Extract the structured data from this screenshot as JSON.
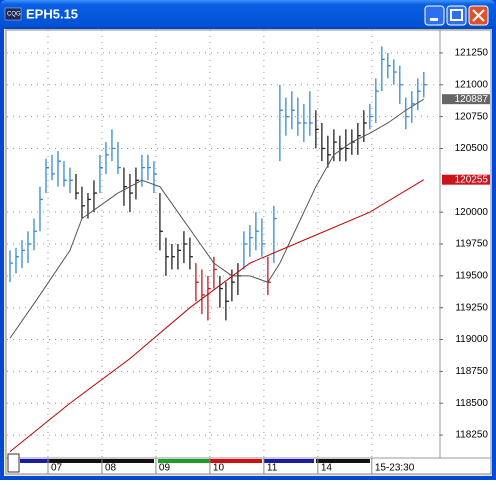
{
  "window": {
    "title": "EPH5.15"
  },
  "chart_data": {
    "type": "ohlc",
    "xlim": [
      -0.5,
      71.7
    ],
    "ylim": [
      118070,
      121430
    ],
    "yticks": [
      118250,
      118500,
      118750,
      119000,
      119250,
      119500,
      119750,
      120000,
      120500,
      120750,
      121000,
      121250
    ],
    "xticks": [
      {
        "value": 7,
        "label": "07"
      },
      {
        "value": 16,
        "label": "08"
      },
      {
        "value": 25,
        "label": "09"
      },
      {
        "value": 34,
        "label": "10"
      },
      {
        "value": 43,
        "label": "11"
      },
      {
        "value": 52,
        "label": "14"
      },
      {
        "value": 61,
        "label": "15-23:30"
      }
    ],
    "grid": true,
    "series": [
      {
        "color": "#2f8ae0",
        "x": [
          0,
          1,
          2,
          3,
          4,
          5,
          6,
          7,
          8,
          9,
          10
        ],
        "high": [
          119700,
          119720,
          119780,
          119850,
          119950,
          120200,
          120420,
          120450,
          120480,
          120400,
          120350
        ],
        "low": [
          119450,
          119520,
          119560,
          119600,
          119700,
          119850,
          120150,
          120250,
          120200,
          120200,
          120150
        ],
        "close": [
          119600,
          119650,
          119700,
          119750,
          119850,
          120100,
          120350,
          120300,
          120400,
          120250,
          120250
        ]
      },
      {
        "color": "#222222",
        "x": [
          11,
          12,
          13,
          14
        ],
        "high": [
          120300,
          120200,
          120150,
          120250
        ],
        "low": [
          120100,
          119950,
          119950,
          120000
        ],
        "close": [
          120150,
          120050,
          120100,
          120150
        ]
      },
      {
        "color": "#2f8ae0",
        "x": [
          15,
          16,
          17,
          18
        ],
        "high": [
          120450,
          120550,
          120650,
          120550
        ],
        "low": [
          120150,
          120300,
          120400,
          120300
        ],
        "close": [
          120350,
          120450,
          120500,
          120350
        ]
      },
      {
        "color": "#222222",
        "x": [
          19,
          20,
          21
        ],
        "high": [
          120350,
          120300,
          120350
        ],
        "low": [
          120050,
          120000,
          120100
        ],
        "close": [
          120200,
          120150,
          120250
        ]
      },
      {
        "color": "#2f8ae0",
        "x": [
          22,
          23,
          24
        ],
        "high": [
          120450,
          120450,
          120400
        ],
        "low": [
          120200,
          120250,
          120150
        ],
        "close": [
          120350,
          120350,
          120300
        ]
      },
      {
        "color": "#222222",
        "x": [
          25,
          26,
          27,
          28,
          29,
          30
        ],
        "high": [
          120150,
          119800,
          119750,
          119750,
          119850,
          119800
        ],
        "low": [
          119700,
          119500,
          119550,
          119550,
          119600,
          119550
        ],
        "close": [
          119850,
          119650,
          119650,
          119700,
          119750,
          119650
        ]
      },
      {
        "color": "#d0121b",
        "x": [
          31,
          32,
          33,
          34
        ],
        "high": [
          119600,
          119550,
          119500,
          119650
        ],
        "low": [
          119300,
          119200,
          119150,
          119400
        ],
        "close": [
          119450,
          119350,
          119400,
          119550
        ]
      },
      {
        "color": "#222222",
        "x": [
          35,
          36,
          37,
          38
        ],
        "high": [
          119500,
          119450,
          119550,
          119600
        ],
        "low": [
          119250,
          119150,
          119300,
          119350
        ],
        "close": [
          119400,
          119300,
          119450,
          119500
        ]
      },
      {
        "color": "#2f8ae0",
        "x": [
          39,
          40,
          41,
          42
        ],
        "high": [
          119850,
          119900,
          120000,
          119950
        ],
        "low": [
          119550,
          119650,
          119700,
          119650
        ],
        "close": [
          119750,
          119800,
          119850,
          119750
        ]
      },
      {
        "color": "#d0121b",
        "x": [
          43
        ],
        "high": [
          119650
        ],
        "low": [
          119350
        ],
        "close": [
          119450
        ]
      },
      {
        "color": "#2f8ae0",
        "x": [
          44,
          45,
          46,
          47,
          48,
          49,
          50
        ],
        "high": [
          120050,
          121000,
          120900,
          120950,
          120900,
          120850,
          120950
        ],
        "low": [
          119600,
          120400,
          120600,
          120650,
          120600,
          120550,
          120600
        ],
        "close": [
          119950,
          120800,
          120750,
          120800,
          120700,
          120700,
          120700
        ]
      },
      {
        "color": "#222222",
        "x": [
          51,
          52,
          53,
          54,
          55,
          56,
          57,
          58,
          59
        ],
        "high": [
          120800,
          120700,
          120600,
          120650,
          120600,
          120650,
          120650,
          120700,
          120800
        ],
        "low": [
          120500,
          120400,
          120350,
          120400,
          120400,
          120400,
          120450,
          120450,
          120550
        ],
        "close": [
          120650,
          120500,
          120450,
          120550,
          120500,
          120500,
          120550,
          120600,
          120700
        ]
      },
      {
        "color": "#2f8ae0",
        "x": [
          60,
          61,
          62,
          63,
          64,
          65,
          66,
          67,
          68,
          69
        ],
        "high": [
          120850,
          121050,
          121300,
          121250,
          121200,
          121150,
          120900,
          120950,
          121050,
          121100
        ],
        "low": [
          120650,
          120700,
          120950,
          121050,
          121000,
          120850,
          120650,
          120700,
          120800,
          120900
        ],
        "close": [
          120750,
          120950,
          121200,
          121150,
          121100,
          121000,
          120750,
          120850,
          120950,
          121000
        ]
      }
    ],
    "lines": [
      {
        "color": "#555555",
        "tag_color": "#666666",
        "x": [
          0,
          5,
          10,
          12,
          15,
          18,
          22,
          25,
          28,
          31,
          34,
          37,
          40,
          43,
          45,
          48,
          51,
          54,
          57,
          60,
          63,
          66,
          69
        ],
        "values": [
          119010,
          119350,
          119700,
          119950,
          120050,
          120150,
          120250,
          120200,
          120000,
          119800,
          119600,
          119500,
          119500,
          119450,
          119600,
          119900,
          120200,
          120450,
          120550,
          120620,
          120700,
          120800,
          120887
        ]
      },
      {
        "color": "#c00000",
        "tag_color": "#d0121b",
        "x": [
          0,
          10,
          20,
          30,
          40,
          50,
          60,
          69
        ],
        "values": [
          118120,
          118500,
          118850,
          119250,
          119600,
          119800,
          120000,
          120255
        ]
      }
    ]
  }
}
